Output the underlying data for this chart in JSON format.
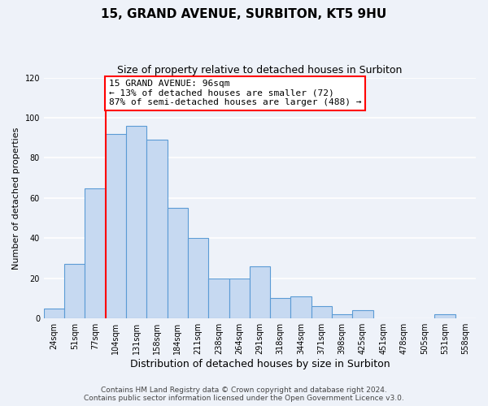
{
  "title": "15, GRAND AVENUE, SURBITON, KT5 9HU",
  "subtitle": "Size of property relative to detached houses in Surbiton",
  "xlabel": "Distribution of detached houses by size in Surbiton",
  "ylabel": "Number of detached properties",
  "bar_labels": [
    "24sqm",
    "51sqm",
    "77sqm",
    "104sqm",
    "131sqm",
    "158sqm",
    "184sqm",
    "211sqm",
    "238sqm",
    "264sqm",
    "291sqm",
    "318sqm",
    "344sqm",
    "371sqm",
    "398sqm",
    "425sqm",
    "451sqm",
    "478sqm",
    "505sqm",
    "531sqm",
    "558sqm"
  ],
  "bar_values": [
    5,
    27,
    65,
    92,
    96,
    89,
    55,
    40,
    20,
    20,
    26,
    10,
    11,
    6,
    2,
    4,
    0,
    0,
    0,
    2,
    0
  ],
  "bar_color": "#c6d9f1",
  "bar_edge_color": "#5b9bd5",
  "vline_index": 3,
  "vline_color": "red",
  "annotation_line1": "15 GRAND AVENUE: 96sqm",
  "annotation_line2": "← 13% of detached houses are smaller (72)",
  "annotation_line3": "87% of semi-detached houses are larger (488) →",
  "annotation_box_color": "white",
  "annotation_box_edge_color": "red",
  "ylim": [
    0,
    120
  ],
  "yticks": [
    0,
    20,
    40,
    60,
    80,
    100,
    120
  ],
  "footer_line1": "Contains HM Land Registry data © Crown copyright and database right 2024.",
  "footer_line2": "Contains public sector information licensed under the Open Government Licence v3.0.",
  "background_color": "#eef2f9",
  "grid_color": "white",
  "title_fontsize": 11,
  "subtitle_fontsize": 9,
  "xlabel_fontsize": 9,
  "ylabel_fontsize": 8,
  "tick_fontsize": 7,
  "annotation_fontsize": 8,
  "footer_fontsize": 6.5
}
